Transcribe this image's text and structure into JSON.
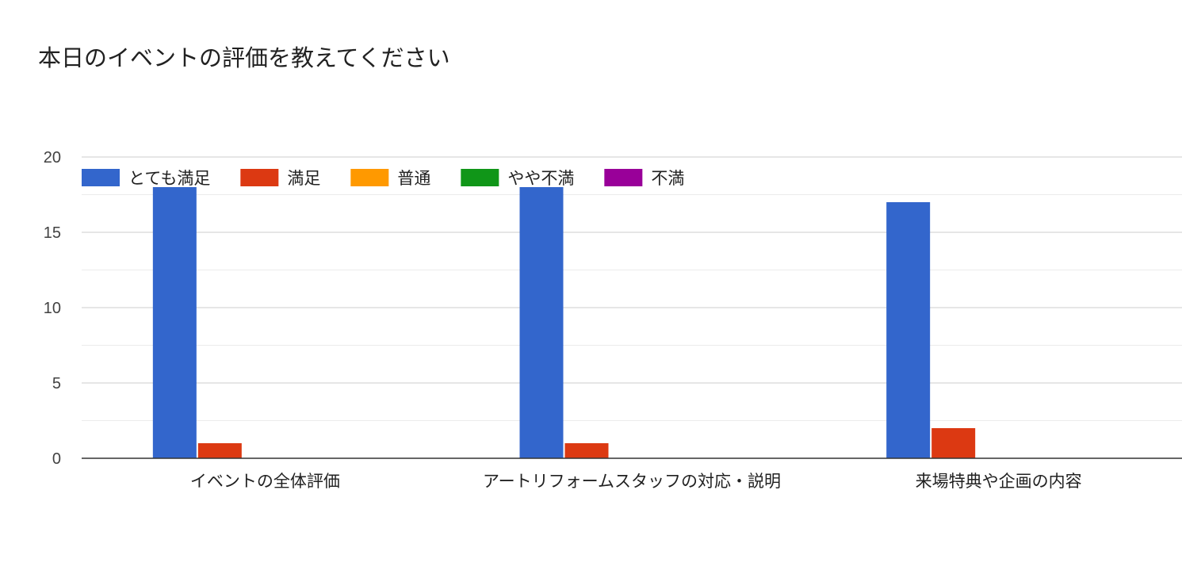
{
  "title": "本日のイベントの評価を教えてください",
  "chart_data": {
    "type": "bar",
    "title": "本日のイベントの評価を教えてください",
    "xlabel": "",
    "ylabel": "",
    "ylim": [
      0,
      20
    ],
    "yticks": [
      "0",
      "5",
      "10",
      "15",
      "20"
    ],
    "categories": [
      "イベントの全体評価",
      "アートリフォームスタッフの対応・説明",
      "来場特典や企画の内容"
    ],
    "series": [
      {
        "name": "とても満足",
        "color": "#3366cc",
        "values": [
          18,
          18,
          17
        ]
      },
      {
        "name": "満足",
        "color": "#dc3912",
        "values": [
          1,
          1,
          2
        ]
      },
      {
        "name": "普通",
        "color": "#ff9900",
        "values": [
          0,
          0,
          0
        ]
      },
      {
        "name": "やや不満",
        "color": "#109618",
        "values": [
          0,
          0,
          0
        ]
      },
      {
        "name": "不満",
        "color": "#990099",
        "values": [
          0,
          0,
          0
        ]
      }
    ],
    "grid": true,
    "legend_position": "top-left"
  }
}
